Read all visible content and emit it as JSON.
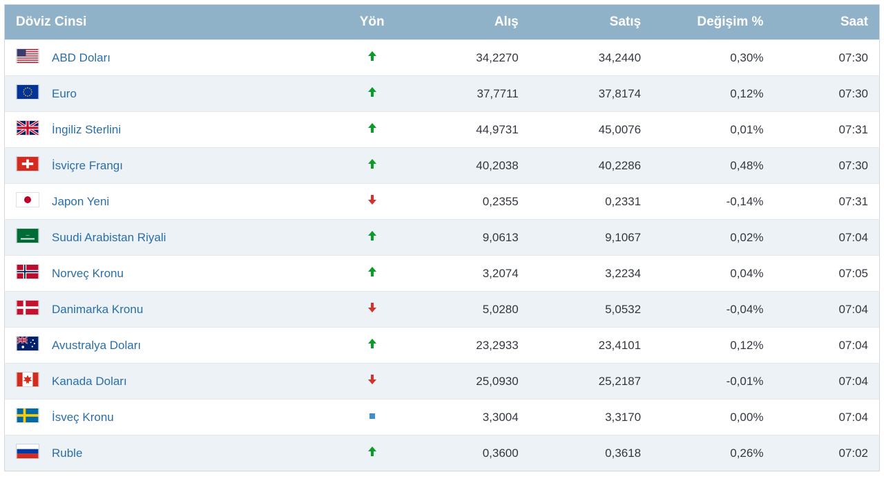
{
  "colors": {
    "header_bg": "#8fb2c8",
    "header_text": "#ffffff",
    "row_odd": "#ffffff",
    "row_even": "#edf2f6",
    "text": "#333740",
    "link": "#2a6ea8",
    "up": "#0a9c28",
    "down": "#d4322b",
    "flat": "#3f8fcf",
    "border": "#d0d6db"
  },
  "headers": {
    "currency": "Döviz Cinsi",
    "direction": "Yön",
    "buy": "Alış",
    "sell": "Satış",
    "change": "Değişim %",
    "time": "Saat"
  },
  "rows": [
    {
      "flag": "us",
      "name": "ABD Doları",
      "dir": "up",
      "buy": "34,2270",
      "sell": "34,2440",
      "change": "0,30%",
      "time": "07:30"
    },
    {
      "flag": "eu",
      "name": "Euro",
      "dir": "up",
      "buy": "37,7711",
      "sell": "37,8174",
      "change": "0,12%",
      "time": "07:30"
    },
    {
      "flag": "gb",
      "name": "İngiliz Sterlini",
      "dir": "up",
      "buy": "44,9731",
      "sell": "45,0076",
      "change": "0,01%",
      "time": "07:31"
    },
    {
      "flag": "ch",
      "name": "İsviçre Frangı",
      "dir": "up",
      "buy": "40,2038",
      "sell": "40,2286",
      "change": "0,48%",
      "time": "07:30"
    },
    {
      "flag": "jp",
      "name": "Japon Yeni",
      "dir": "down",
      "buy": "0,2355",
      "sell": "0,2331",
      "change": "-0,14%",
      "time": "07:31"
    },
    {
      "flag": "sa",
      "name": "Suudi Arabistan Riyali",
      "dir": "up",
      "buy": "9,0613",
      "sell": "9,1067",
      "change": "0,02%",
      "time": "07:04"
    },
    {
      "flag": "no",
      "name": "Norveç Kronu",
      "dir": "up",
      "buy": "3,2074",
      "sell": "3,2234",
      "change": "0,04%",
      "time": "07:05"
    },
    {
      "flag": "dk",
      "name": "Danimarka Kronu",
      "dir": "down",
      "buy": "5,0280",
      "sell": "5,0532",
      "change": "-0,04%",
      "time": "07:04"
    },
    {
      "flag": "au",
      "name": "Avustralya Doları",
      "dir": "up",
      "buy": "23,2933",
      "sell": "23,4101",
      "change": "0,12%",
      "time": "07:04"
    },
    {
      "flag": "ca",
      "name": "Kanada Doları",
      "dir": "down",
      "buy": "25,0930",
      "sell": "25,2187",
      "change": "-0,01%",
      "time": "07:04"
    },
    {
      "flag": "se",
      "name": "İsveç Kronu",
      "dir": "flat",
      "buy": "3,3004",
      "sell": "3,3170",
      "change": "0,00%",
      "time": "07:04"
    },
    {
      "flag": "ru",
      "name": "Ruble",
      "dir": "up",
      "buy": "0,3600",
      "sell": "0,3618",
      "change": "0,26%",
      "time": "07:02"
    }
  ]
}
